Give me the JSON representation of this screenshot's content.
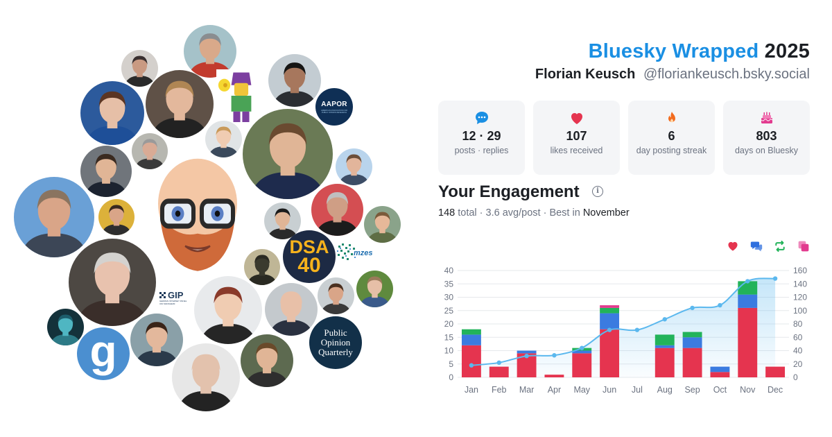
{
  "header": {
    "brand": "Bluesky Wrapped",
    "year": "2025",
    "display_name": "Florian Keusch",
    "handle": "@floriankeusch.bsky.social"
  },
  "stats": [
    {
      "icon": "chat-bubble-icon",
      "value": "12 · 29",
      "label": "posts · replies",
      "color": "#1a8fe3"
    },
    {
      "icon": "heart-icon",
      "value": "107",
      "label": "likes received",
      "color": "#e5344f"
    },
    {
      "icon": "flame-icon",
      "value": "6",
      "label": "day posting streak",
      "color": "#f26b1d"
    },
    {
      "icon": "cake-icon",
      "value": "803",
      "label": "days on Bluesky",
      "color": "#e23b8f"
    }
  ],
  "engagement": {
    "title": "Your Engagement",
    "total": "148",
    "total_word": "total",
    "avg": "3.6 avg/post",
    "best_prefix": "Best in",
    "best_month": "November",
    "legend": [
      {
        "icon": "heart-icon",
        "color": "#e5344f"
      },
      {
        "icon": "reply-icon",
        "color": "#2f6fde"
      },
      {
        "icon": "repost-icon",
        "color": "#22b35a"
      },
      {
        "icon": "quote-icon",
        "color": "#e23b8f"
      }
    ]
  },
  "chart_data": {
    "type": "bar",
    "categories": [
      "Jan",
      "Feb",
      "Mar",
      "Apr",
      "May",
      "Jun",
      "Jul",
      "Aug",
      "Sep",
      "Oct",
      "Nov",
      "Dec"
    ],
    "series": [
      {
        "color": "#e5344f",
        "values": [
          12,
          4,
          9,
          1,
          9,
          18,
          0,
          11,
          11,
          2,
          26,
          4
        ]
      },
      {
        "color": "#3b7be0",
        "values": [
          4,
          0,
          1,
          0,
          1,
          6,
          0,
          1,
          4,
          2,
          5,
          0
        ]
      },
      {
        "color": "#22b35a",
        "values": [
          2,
          0,
          0,
          0,
          1,
          2,
          0,
          4,
          2,
          0,
          5,
          0
        ]
      },
      {
        "color": "#e23b8f",
        "values": [
          0,
          0,
          0,
          0,
          0,
          1,
          0,
          0,
          0,
          0,
          0,
          0
        ]
      }
    ],
    "cumulative": {
      "color": "#5bb8ee",
      "values": [
        18,
        22,
        32,
        33,
        44,
        71,
        71,
        87,
        104,
        108,
        144,
        148
      ]
    },
    "ylim": [
      0,
      40
    ],
    "yticks": [
      0,
      5,
      10,
      15,
      20,
      25,
      30,
      35,
      40
    ],
    "y2lim": [
      0,
      160
    ],
    "y2ticks": [
      0,
      20,
      40,
      60,
      80,
      100,
      120,
      140,
      160
    ],
    "grid": true
  },
  "avatars": [
    {
      "name": "avatar-bald-man-red-shirt",
      "skin": "#d9a98a",
      "hair": "#8a8d90",
      "bg": "#a5c2c9",
      "shirt": "#c23b2d"
    },
    {
      "name": "avatar-bearded-man-cap",
      "skin": "#c99a82",
      "hair": "#3a3030",
      "bg": "#d4d0cc",
      "shirt": "#2a2a2a"
    },
    {
      "name": "avatar-lego-figure",
      "skin": "#f0c43a",
      "hair": "#7c3fa0",
      "bg": "#ffffff",
      "shirt": "#4aa356"
    },
    {
      "name": "avatar-smiling-man-dark-hair",
      "skin": "#a7775d",
      "hair": "#161514",
      "bg": "#c3ccd2",
      "shirt": "#2b2e33"
    },
    {
      "name": "avatar-woman-brown-hair",
      "skin": "#e6bfa7",
      "hair": "#5b3523",
      "bg": "#2c5a9c",
      "shirt": "#1e4f98"
    },
    {
      "name": "avatar-woman-glasses-coffee",
      "skin": "#e3b89c",
      "hair": "#b08654",
      "bg": "#5f5147",
      "shirt": "#222222"
    },
    {
      "name": "avatar-man-suit-street",
      "skin": "#e0b596",
      "hair": "#6a4a30",
      "bg": "#6a7a55",
      "shirt": "#1e2b4d"
    },
    {
      "name": "avatar-blonde-woman",
      "skin": "#f0ccb2",
      "hair": "#c99a5a",
      "bg": "#e0e4e6",
      "shirt": "#3b4a5c"
    },
    {
      "name": "avatar-man-dark-suit",
      "skin": "#e0b596",
      "hair": "#3a2a20",
      "bg": "#70757b",
      "shirt": "#1c2330"
    },
    {
      "name": "avatar-older-man-glasses",
      "skin": "#d9ab95",
      "hair": "#9a9a9a",
      "bg": "#b7b7b0",
      "shirt": "#3a3a3a"
    },
    {
      "name": "avatar-man-beard-blue",
      "skin": "#e2b59b",
      "hair": "#6c4f3a",
      "bg": "#b9d4ec",
      "shirt": "#3c4d66"
    },
    {
      "name": "avatar-man-colosseum",
      "skin": "#d9a588",
      "hair": "#8a7460",
      "bg": "#6aa0d6",
      "shirt": "#3c4656"
    },
    {
      "name": "avatar-memoji-bald-beard",
      "skin": "#f4c7a5",
      "hair": "#cf6a3a",
      "bg": "#ffffff",
      "shirt": "#7a4b2a"
    },
    {
      "name": "avatar-man-curly-glasses",
      "skin": "#e0b596",
      "hair": "#1c1c1c",
      "bg": "#c8cfd2",
      "shirt": "#2a2a2a"
    },
    {
      "name": "avatar-grey-hair-man",
      "skin": "#cf9e85",
      "hair": "#bfbfbf",
      "bg": "#d44e52",
      "shirt": "#1c1c1c"
    },
    {
      "name": "avatar-man-smiling-outdoor",
      "skin": "#e6b899",
      "hair": "#7a5a3a",
      "bg": "#8aa38a",
      "shirt": "#5e6d45"
    },
    {
      "name": "avatar-man-yellow-bg",
      "skin": "#d9a588",
      "hair": "#3a2a20",
      "bg": "#dcb13a",
      "shirt": "#2e2e2e"
    },
    {
      "name": "avatar-older-woman-glasses",
      "skin": "#e8c2ae",
      "hair": "#d4d2cf",
      "bg": "#4d4843",
      "shirt": "#3a2e2a"
    },
    {
      "name": "avatar-silhouette-path",
      "skin": "#3a3a2e",
      "hair": "#2a2a22",
      "bg": "#bfb696",
      "shirt": "#2a2a22"
    },
    {
      "name": "avatar-woman-red-hair",
      "skin": "#f0ccb2",
      "hair": "#8a3a2a",
      "bg": "#e8eaec",
      "shirt": "#262626"
    },
    {
      "name": "avatar-bald-man-glasses",
      "skin": "#e8c0a8",
      "hair": "#e8c0a8",
      "bg": "#c4c9cd",
      "shirt": "#2a3140"
    },
    {
      "name": "avatar-smiling-man-beard",
      "skin": "#d9a588",
      "hair": "#4a3020",
      "bg": "#c9cfd2",
      "shirt": "#3a3a3a"
    },
    {
      "name": "avatar-woman-glasses-green",
      "skin": "#e6bfa7",
      "hair": "#9a7a5a",
      "bg": "#5f8a3e",
      "shirt": "#3a5a8a"
    },
    {
      "name": "avatar-galaxy",
      "skin": "#4fb6c2",
      "hair": "#1d5e6c",
      "bg": "#14323b",
      "shirt": "#2c7a86"
    },
    {
      "name": "avatar-woman-dark-hair",
      "skin": "#e3b89c",
      "hair": "#3a2418",
      "bg": "#8aa0a8",
      "shirt": "#2a3a4a"
    },
    {
      "name": "avatar-bald-man-dark",
      "skin": "#e3c2ad",
      "hair": "#e3c2ad",
      "bg": "#e7e7e7",
      "shirt": "#232323"
    },
    {
      "name": "avatar-young-man-curly",
      "skin": "#e0b596",
      "hair": "#6a4a2a",
      "bg": "#5d6a50",
      "shirt": "#2e2e2e"
    }
  ],
  "logos": {
    "aapor": {
      "title": "AAPOR",
      "sub": "AMERICAN ASSOCIATION FOR PUBLIC OPINION RESEARCH"
    },
    "dsa": {
      "line1": "DSA",
      "line2": "40"
    },
    "mzes": {
      "title": "mzes"
    },
    "gip": {
      "title": "GIP",
      "sub": "GERMAN INTERNET PANEL UNI MANNHEIM"
    },
    "poq": {
      "line1": "Public",
      "line2": "Opinion",
      "line3": "Quarterly"
    },
    "g": {
      "letter": "g"
    }
  }
}
